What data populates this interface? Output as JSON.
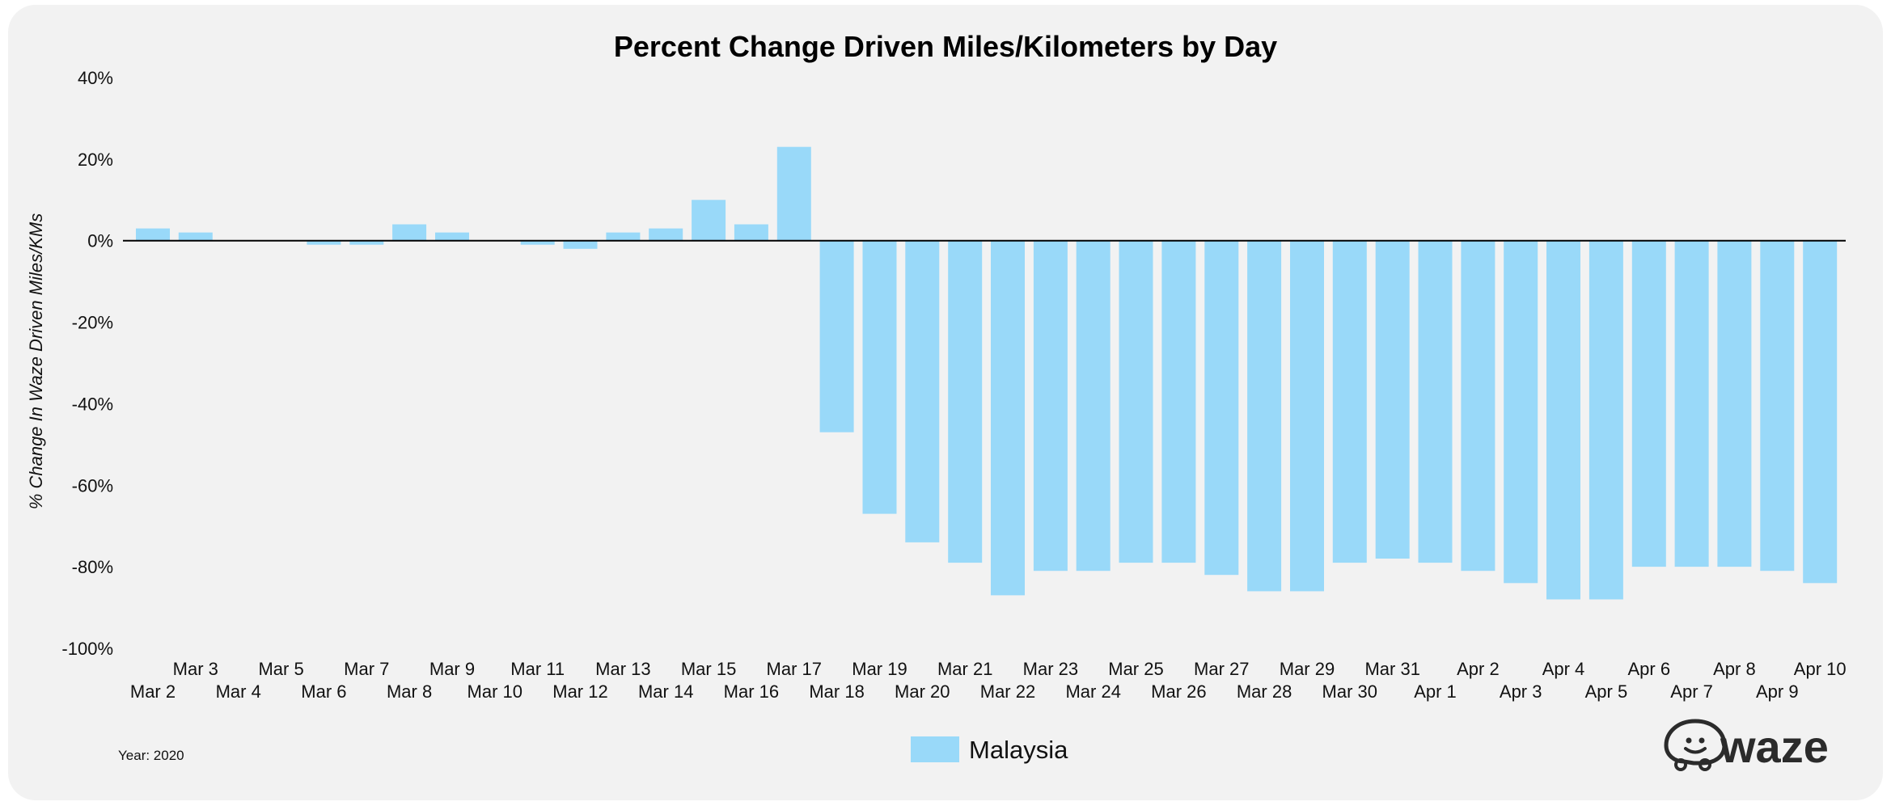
{
  "chart_data": {
    "type": "bar",
    "title": "Percent Change Driven Miles/Kilometers by Day",
    "xlabel": "",
    "ylabel": "% Change In Waze Driven Miles/KMs",
    "ylim": [
      -100,
      40
    ],
    "yticks": [
      40,
      20,
      0,
      -20,
      -40,
      -60,
      -80,
      -100
    ],
    "ytick_labels": [
      "40%",
      "20%",
      "0%",
      "-20%",
      "-40%",
      "-60%",
      "-80%",
      "-100%"
    ],
    "categories": [
      "Mar 2",
      "Mar 3",
      "Mar 4",
      "Mar 5",
      "Mar 6",
      "Mar 7",
      "Mar 8",
      "Mar 9",
      "Mar 10",
      "Mar 11",
      "Mar 12",
      "Mar 13",
      "Mar 14",
      "Mar 15",
      "Mar 16",
      "Mar 17",
      "Mar 18",
      "Mar 19",
      "Mar 20",
      "Mar 21",
      "Mar 22",
      "Mar 23",
      "Mar 24",
      "Mar 25",
      "Mar 26",
      "Mar 27",
      "Mar 28",
      "Mar 29",
      "Mar 30",
      "Mar 31",
      "Apr 1",
      "Apr 2",
      "Apr 3",
      "Apr 4",
      "Apr 5",
      "Apr 6",
      "Apr 7",
      "Apr 8",
      "Apr 9",
      "Apr 10"
    ],
    "series": [
      {
        "name": "Malaysia",
        "color": "#99d9f9",
        "values": [
          3,
          2,
          0,
          0,
          -1,
          -1,
          4,
          2,
          0,
          -1,
          -2,
          2,
          3,
          10,
          4,
          23,
          -47,
          -67,
          -74,
          -79,
          -87,
          -81,
          -81,
          -79,
          -79,
          -82,
          -86,
          -86,
          -79,
          -78,
          -79,
          -81,
          -84,
          -88,
          -88,
          -80,
          -80,
          -80,
          -81,
          -84
        ]
      }
    ],
    "legend": "bottom-center",
    "grid": false
  },
  "footer": {
    "year_note": "Year: 2020",
    "logo_name": "waze"
  },
  "colors": {
    "background": "#f2f2f2",
    "bar": "#99d9f9",
    "axis": "#000000"
  }
}
